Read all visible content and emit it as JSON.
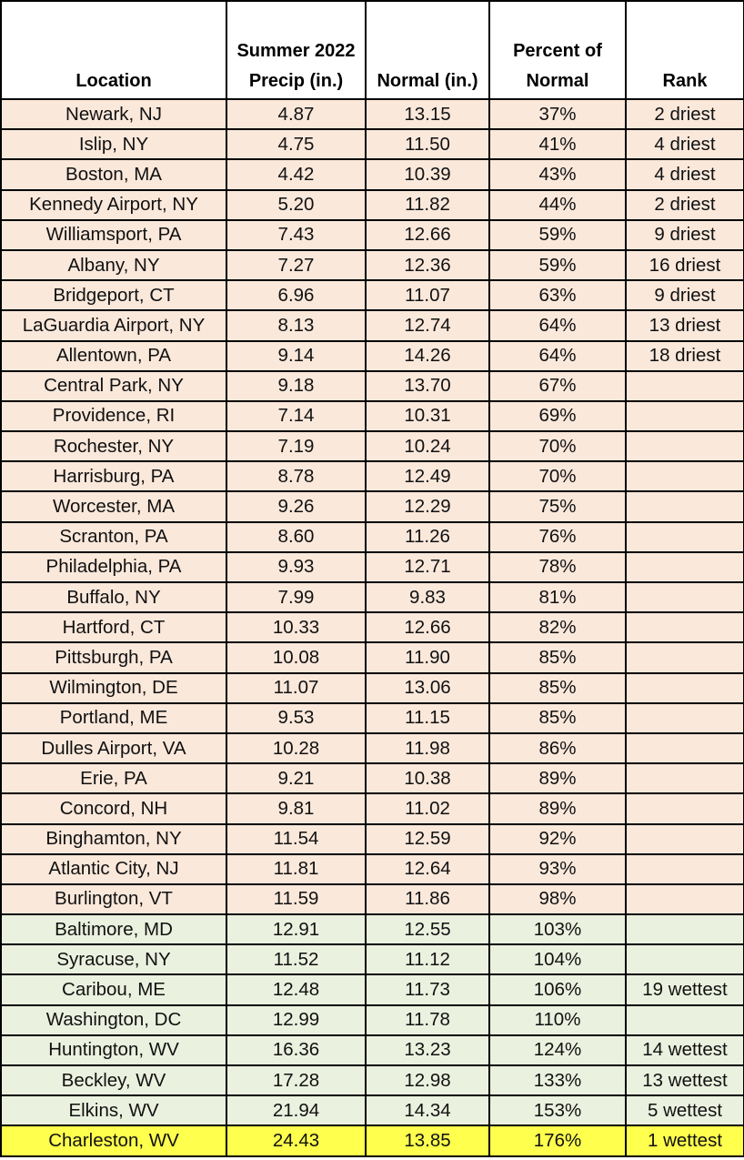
{
  "table": {
    "headers": {
      "location": "Location",
      "summer_line1": "Summer 2022",
      "summer_line2": "Precip (in.)",
      "normal": "Normal (in.)",
      "percent_line1": "Percent of",
      "percent_line2": "Normal",
      "rank": "Rank"
    },
    "colors": {
      "below_normal": "#fae8db",
      "above_normal": "#ebf1df",
      "record": "#ffff4d"
    },
    "rows": [
      {
        "location": "Newark, NJ",
        "precip": "4.87",
        "normal": "13.15",
        "percent": "37%",
        "rank": "2 driest",
        "category": "dry"
      },
      {
        "location": "Islip, NY",
        "precip": "4.75",
        "normal": "11.50",
        "percent": "41%",
        "rank": "4 driest",
        "category": "dry"
      },
      {
        "location": "Boston, MA",
        "precip": "4.42",
        "normal": "10.39",
        "percent": "43%",
        "rank": "4 driest",
        "category": "dry"
      },
      {
        "location": "Kennedy Airport, NY",
        "precip": "5.20",
        "normal": "11.82",
        "percent": "44%",
        "rank": "2 driest",
        "category": "dry"
      },
      {
        "location": "Williamsport, PA",
        "precip": "7.43",
        "normal": "12.66",
        "percent": "59%",
        "rank": "9 driest",
        "category": "dry"
      },
      {
        "location": "Albany, NY",
        "precip": "7.27",
        "normal": "12.36",
        "percent": "59%",
        "rank": "16 driest",
        "category": "dry"
      },
      {
        "location": "Bridgeport, CT",
        "precip": "6.96",
        "normal": "11.07",
        "percent": "63%",
        "rank": "9 driest",
        "category": "dry"
      },
      {
        "location": "LaGuardia Airport, NY",
        "precip": "8.13",
        "normal": "12.74",
        "percent": "64%",
        "rank": "13 driest",
        "category": "dry"
      },
      {
        "location": "Allentown, PA",
        "precip": "9.14",
        "normal": "14.26",
        "percent": "64%",
        "rank": "18 driest",
        "category": "dry"
      },
      {
        "location": "Central Park, NY",
        "precip": "9.18",
        "normal": "13.70",
        "percent": "67%",
        "rank": "",
        "category": "dry"
      },
      {
        "location": "Providence, RI",
        "precip": "7.14",
        "normal": "10.31",
        "percent": "69%",
        "rank": "",
        "category": "dry"
      },
      {
        "location": "Rochester, NY",
        "precip": "7.19",
        "normal": "10.24",
        "percent": "70%",
        "rank": "",
        "category": "dry"
      },
      {
        "location": "Harrisburg, PA",
        "precip": "8.78",
        "normal": "12.49",
        "percent": "70%",
        "rank": "",
        "category": "dry"
      },
      {
        "location": "Worcester, MA",
        "precip": "9.26",
        "normal": "12.29",
        "percent": "75%",
        "rank": "",
        "category": "dry"
      },
      {
        "location": "Scranton, PA",
        "precip": "8.60",
        "normal": "11.26",
        "percent": "76%",
        "rank": "",
        "category": "dry"
      },
      {
        "location": "Philadelphia, PA",
        "precip": "9.93",
        "normal": "12.71",
        "percent": "78%",
        "rank": "",
        "category": "dry"
      },
      {
        "location": "Buffalo, NY",
        "precip": "7.99",
        "normal": "9.83",
        "percent": "81%",
        "rank": "",
        "category": "dry"
      },
      {
        "location": "Hartford, CT",
        "precip": "10.33",
        "normal": "12.66",
        "percent": "82%",
        "rank": "",
        "category": "dry"
      },
      {
        "location": "Pittsburgh, PA",
        "precip": "10.08",
        "normal": "11.90",
        "percent": "85%",
        "rank": "",
        "category": "dry"
      },
      {
        "location": "Wilmington, DE",
        "precip": "11.07",
        "normal": "13.06",
        "percent": "85%",
        "rank": "",
        "category": "dry"
      },
      {
        "location": "Portland, ME",
        "precip": "9.53",
        "normal": "11.15",
        "percent": "85%",
        "rank": "",
        "category": "dry"
      },
      {
        "location": "Dulles Airport, VA",
        "precip": "10.28",
        "normal": "11.98",
        "percent": "86%",
        "rank": "",
        "category": "dry"
      },
      {
        "location": "Erie, PA",
        "precip": "9.21",
        "normal": "10.38",
        "percent": "89%",
        "rank": "",
        "category": "dry"
      },
      {
        "location": "Concord, NH",
        "precip": "9.81",
        "normal": "11.02",
        "percent": "89%",
        "rank": "",
        "category": "dry"
      },
      {
        "location": "Binghamton, NY",
        "precip": "11.54",
        "normal": "12.59",
        "percent": "92%",
        "rank": "",
        "category": "dry"
      },
      {
        "location": "Atlantic City, NJ",
        "precip": "11.81",
        "normal": "12.64",
        "percent": "93%",
        "rank": "",
        "category": "dry"
      },
      {
        "location": "Burlington, VT",
        "precip": "11.59",
        "normal": "11.86",
        "percent": "98%",
        "rank": "",
        "category": "dry"
      },
      {
        "location": "Baltimore, MD",
        "precip": "12.91",
        "normal": "12.55",
        "percent": "103%",
        "rank": "",
        "category": "wet"
      },
      {
        "location": "Syracuse, NY",
        "precip": "11.52",
        "normal": "11.12",
        "percent": "104%",
        "rank": "",
        "category": "wet"
      },
      {
        "location": "Caribou, ME",
        "precip": "12.48",
        "normal": "11.73",
        "percent": "106%",
        "rank": "19 wettest",
        "category": "wet"
      },
      {
        "location": "Washington, DC",
        "precip": "12.99",
        "normal": "11.78",
        "percent": "110%",
        "rank": "",
        "category": "wet"
      },
      {
        "location": "Huntington, WV",
        "precip": "16.36",
        "normal": "13.23",
        "percent": "124%",
        "rank": "14 wettest",
        "category": "wet"
      },
      {
        "location": "Beckley, WV",
        "precip": "17.28",
        "normal": "12.98",
        "percent": "133%",
        "rank": "13 wettest",
        "category": "wet"
      },
      {
        "location": "Elkins, WV",
        "precip": "21.94",
        "normal": "14.34",
        "percent": "153%",
        "rank": "5 wettest",
        "category": "wet"
      },
      {
        "location": "Charleston, WV",
        "precip": "24.43",
        "normal": "13.85",
        "percent": "176%",
        "rank": "1 wettest",
        "category": "record"
      }
    ]
  }
}
